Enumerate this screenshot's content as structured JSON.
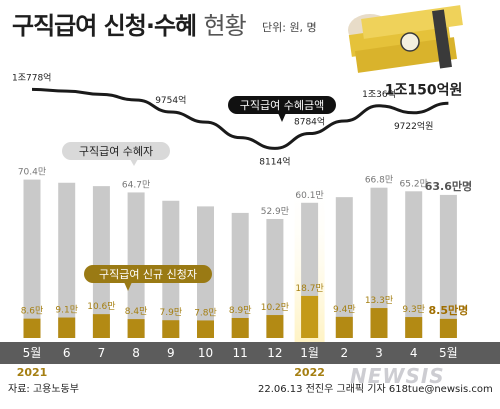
{
  "title": "구직급여 신청·수혜",
  "title_suffix": "현황",
  "unit": "단위: 원, 명",
  "source": "자료: 고용노동부",
  "credit": "22.06.13 전진우 그래픽 기자 618tue@newsis.com",
  "watermark": "NEWSIS",
  "colors": {
    "recipients_bar": "#c9c9c9",
    "applicants_bar": "#b38a14",
    "amount_line": "#1a1a1a",
    "label_gold": "#a57f12",
    "bottom_band": "#5c5c5c"
  },
  "icon": "money-stack-icon",
  "chart_data": {
    "type": "bar",
    "categories": [
      "5월",
      "6",
      "7",
      "8",
      "9",
      "10",
      "11",
      "12",
      "1월",
      "2",
      "3",
      "4",
      "5월"
    ],
    "year_labels": [
      {
        "index": 0,
        "label": "2021"
      },
      {
        "index": 8,
        "label": "2022"
      }
    ],
    "highlight_indices": [
      8
    ],
    "series": [
      {
        "name": "구직급여 수혜자",
        "values": [
          70.4,
          69.0,
          67.5,
          64.7,
          61.0,
          58.5,
          55.6,
          52.9,
          60.1,
          62.6,
          66.8,
          65.2,
          63.6
        ],
        "labels": [
          "70.4만",
          "",
          "",
          "64.7만",
          "",
          "",
          "",
          "52.9만",
          "60.1만",
          "",
          "66.8만",
          "65.2만",
          "63.6만명"
        ]
      },
      {
        "name": "구직급여 신규 신청자",
        "values": [
          8.6,
          9.1,
          10.6,
          8.4,
          7.9,
          7.8,
          8.9,
          10.2,
          18.7,
          9.4,
          13.3,
          9.3,
          8.5
        ],
        "labels": [
          "8.6만",
          "9.1만",
          "10.6만",
          "8.4만",
          "7.9만",
          "7.8만",
          "8.9만",
          "10.2만",
          "18.7만",
          "9.4만",
          "13.3만",
          "9.3만",
          "8.5만명"
        ]
      },
      {
        "name": "구직급여 수혜금액",
        "type": "line",
        "values": [
          10778,
          10700,
          10550,
          10300,
          9754,
          9300,
          8600,
          8114,
          8784,
          9350,
          10036,
          9722,
          10150
        ],
        "labels": [
          "1조778억",
          "",
          "",
          "",
          "9754억",
          "",
          "",
          "8114억",
          "8784억",
          "",
          "1조36억",
          "9722억원",
          "1조150억원"
        ]
      }
    ],
    "ylabel": "",
    "xlabel": "",
    "ylim": [
      0,
      80
    ]
  }
}
